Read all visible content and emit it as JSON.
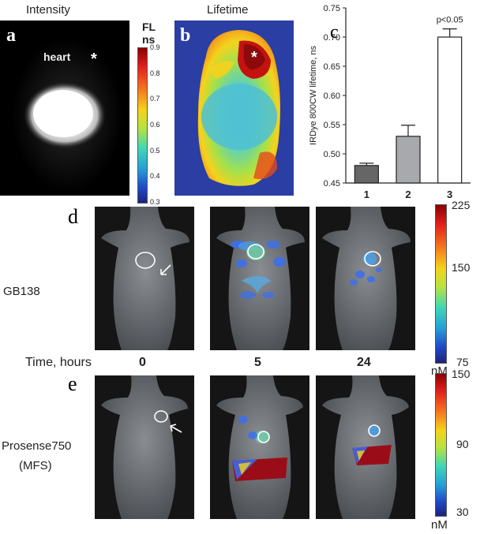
{
  "panel_a": {
    "letter": "a",
    "title": "Intensity",
    "label_heart": "heart",
    "asterisk": "*"
  },
  "panel_b": {
    "letter": "b",
    "title": "Lifetime",
    "asterisk": "*",
    "cb_title": "FL",
    "cb_unit": "ns",
    "cb_ticks": [
      "0.9",
      "0.8",
      "0.7",
      "0.6",
      "0.5",
      "0.4",
      "0.3"
    ]
  },
  "panel_c": {
    "letter": "c"
  },
  "chart_data": {
    "type": "bar",
    "categories": [
      "1",
      "2",
      "3"
    ],
    "values": [
      0.48,
      0.53,
      0.7
    ],
    "errors": [
      0.004,
      0.019,
      0.014
    ],
    "ylabel": "IRDye 800CW lifetime, ns",
    "ylim": [
      0.45,
      0.75
    ],
    "yticks": [
      "0.45",
      "0.50",
      "0.55",
      "0.60",
      "0.65",
      "0.70",
      "0.75"
    ],
    "annotation": "p<0.05",
    "bar_colors": [
      "#666666",
      "#a7a9ac",
      "#ffffff"
    ]
  },
  "panel_d": {
    "letter": "d",
    "row_label": "GB138",
    "cb_ticks": [
      "225",
      "150",
      "75"
    ],
    "cb_unit": "nM"
  },
  "time_row": {
    "label": "Time, hours",
    "t0": "0",
    "t5": "5",
    "t24": "24"
  },
  "panel_e": {
    "letter": "e",
    "row_label": "Prosense750",
    "row_sublabel": "(MFS)",
    "cb_ticks": [
      "150",
      "90",
      "30"
    ],
    "cb_unit": "nM"
  }
}
